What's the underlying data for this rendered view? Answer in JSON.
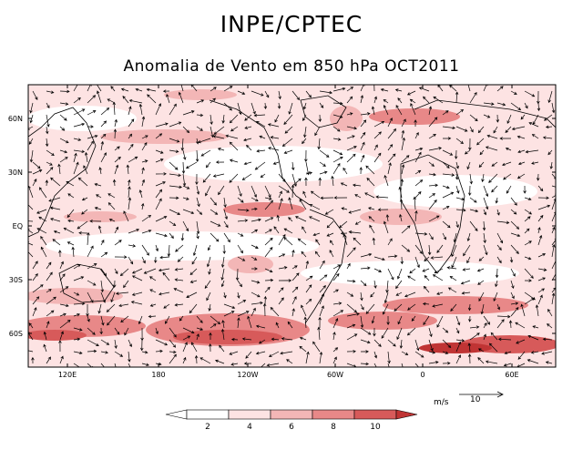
{
  "header": {
    "title": "INPE/CPTEC",
    "subtitle": "Anomalia de Vento em 850 hPa OCT2011"
  },
  "map": {
    "lat_labels": [
      "60N",
      "30N",
      "EQ",
      "30S",
      "60S"
    ],
    "lon_labels": [
      "120E",
      "180",
      "120W",
      "60W",
      "0",
      "60E"
    ],
    "shading_colors": [
      "#ffffff",
      "#fde3e3",
      "#f3b6b6",
      "#e88888",
      "#d75a5a",
      "#c03434"
    ]
  },
  "reference_vector": {
    "unit": "m/s",
    "value": "10"
  },
  "colorbar": {
    "labels": [
      "2",
      "4",
      "6",
      "8",
      "10"
    ],
    "colors": [
      "#ffffff",
      "#fde3e3",
      "#f3b6b6",
      "#e88888",
      "#d75a5a",
      "#c03434"
    ]
  }
}
